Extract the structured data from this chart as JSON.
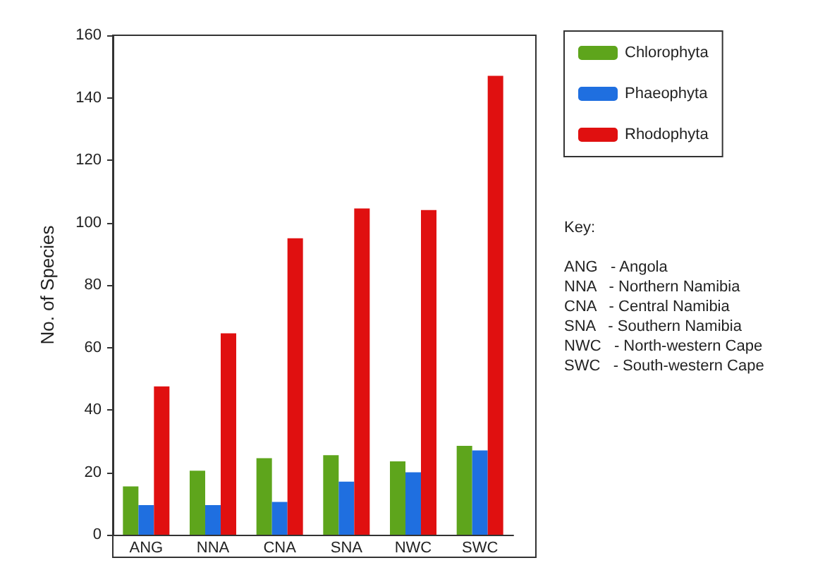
{
  "chart_data": {
    "type": "bar",
    "ylabel": "No. of Species",
    "categories": [
      "ANG",
      "NNA",
      "CNA",
      "SNA",
      "NWC",
      "SWC"
    ],
    "series": [
      {
        "name": "Chlorophyta",
        "color": "#5ea51c",
        "values": [
          15.5,
          20.5,
          24.5,
          25.5,
          23.5,
          28.5
        ]
      },
      {
        "name": "Phaeophyta",
        "color": "#1f6fe0",
        "values": [
          9.5,
          9.5,
          10.5,
          17,
          20,
          27
        ]
      },
      {
        "name": "Rhodophyta",
        "color": "#e01010",
        "values": [
          47.5,
          64.5,
          95,
          104.5,
          104,
          147
        ]
      }
    ],
    "ylim": [
      0,
      160
    ],
    "yticks": [
      0,
      20,
      40,
      60,
      80,
      100,
      120,
      140,
      160
    ],
    "grid": false,
    "legend": "top right",
    "annotations": [
      "Key:",
      "ANG   - Angola",
      "NNA   - Northern Namibia",
      "CNA   - Central Namibia",
      "SNA   - Southern Namibia",
      "NWC   - North-western Cape",
      "SWC   - South-western Cape"
    ]
  }
}
